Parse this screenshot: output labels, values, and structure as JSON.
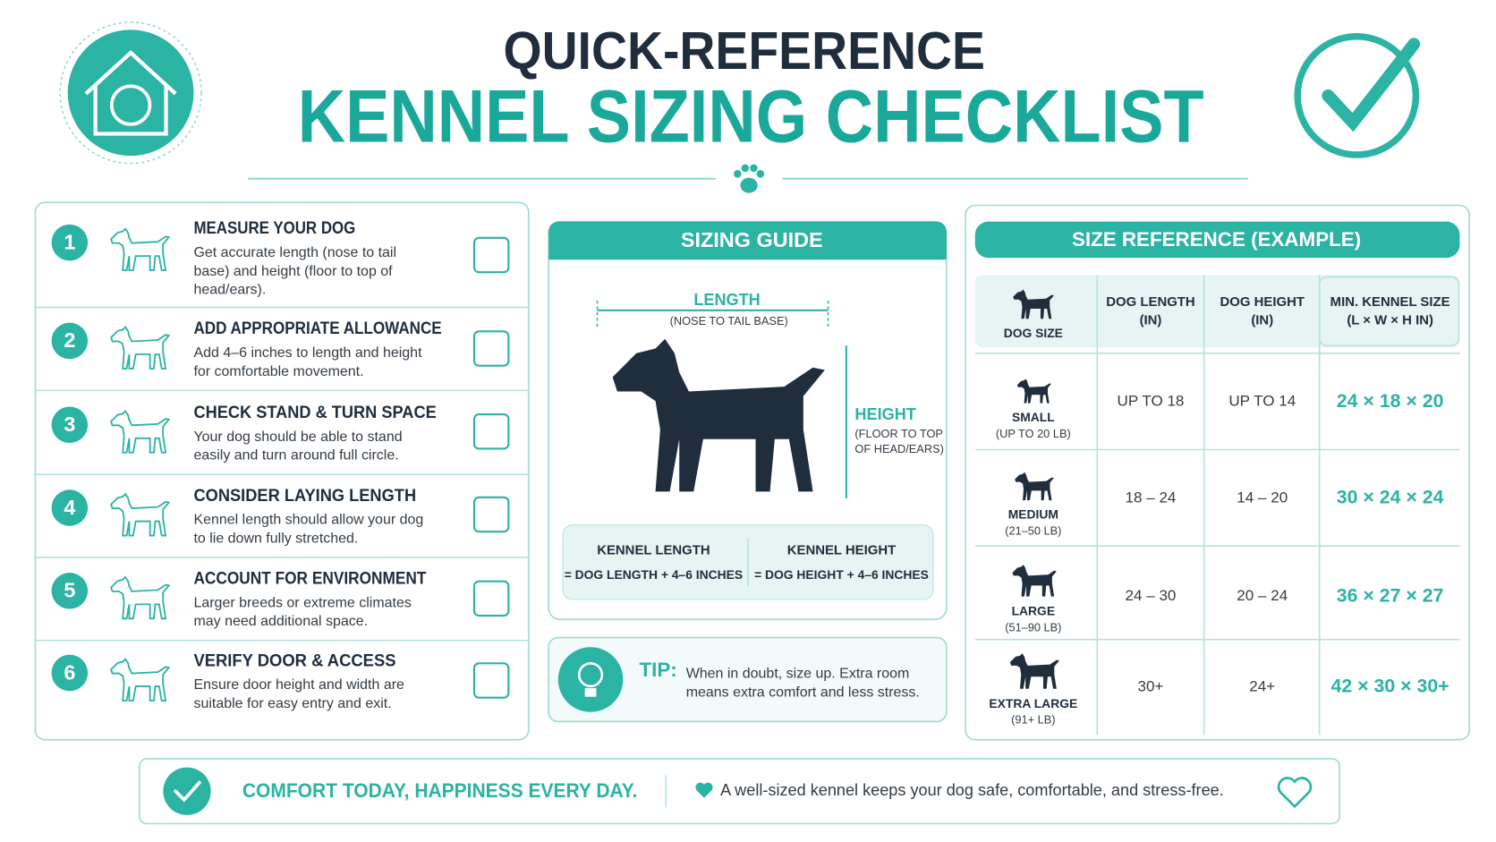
{
  "header": {
    "kicker": "QUICK-REFERENCE",
    "title": "KENNEL SIZING CHECKLIST"
  },
  "checklist": [
    {
      "number": "1",
      "title": "MEASURE YOUR DOG",
      "lines": [
        "Get accurate length (nose to tail",
        "base) and height (floor to top of",
        "head/ears)."
      ]
    },
    {
      "number": "2",
      "title": "ADD APPROPRIATE ALLOWANCE",
      "lines": [
        "Add 4–6 inches to length and height",
        "for comfortable movement."
      ]
    },
    {
      "number": "3",
      "title": "CHECK STAND & TURN SPACE",
      "lines": [
        "Your dog should be able to stand",
        "easily and turn around full circle."
      ]
    },
    {
      "number": "4",
      "title": "CONSIDER LAYING LENGTH",
      "lines": [
        "Kennel length should allow your dog",
        "to lie down fully stretched."
      ]
    },
    {
      "number": "5",
      "title": "ACCOUNT FOR ENVIRONMENT",
      "lines": [
        "Larger breeds or extreme climates",
        "may need additional space."
      ]
    },
    {
      "number": "6",
      "title": "VERIFY DOOR & ACCESS",
      "lines": [
        "Ensure door height and width are",
        "suitable for easy entry and exit."
      ]
    }
  ],
  "sizing_guide": {
    "title": "SIZING GUIDE",
    "length_label": "LENGTH",
    "length_note": "(NOSE TO TAIL BASE)",
    "height_label": "HEIGHT",
    "height_note": [
      "(FLOOR TO TOP",
      "OF HEAD/EARS)"
    ],
    "formulas": [
      {
        "label": "KENNEL LENGTH",
        "formula": "= DOG LENGTH + 4–6 INCHES"
      },
      {
        "label": "KENNEL HEIGHT",
        "formula": "= DOG HEIGHT + 4–6 INCHES"
      }
    ]
  },
  "tip": {
    "label": "TIP:",
    "lines": [
      "When in doubt, size up. Extra room",
      "means extra comfort and less stress."
    ]
  },
  "size_reference": {
    "title": "SIZE REFERENCE (EXAMPLE)",
    "headers": [
      [
        "DOG SIZE"
      ],
      [
        "DOG LENGTH",
        "(IN)"
      ],
      [
        "DOG HEIGHT",
        "(IN)"
      ],
      [
        "MIN. KENNEL SIZE",
        "(L × W × H IN)"
      ]
    ],
    "rows": [
      {
        "size": "SMALL",
        "weight": "(UP TO 20 LB)",
        "length": "UP TO 18",
        "height": "UP TO 14",
        "kennel": "24 × 18 × 20"
      },
      {
        "size": "MEDIUM",
        "weight": "(21–50 LB)",
        "length": "18 – 24",
        "height": "14 – 20",
        "kennel": "30 × 24 × 24"
      },
      {
        "size": "LARGE",
        "weight": "(51–90 LB)",
        "length": "24 – 30",
        "height": "20 – 24",
        "kennel": "36 × 27 × 27"
      },
      {
        "size": "EXTRA LARGE",
        "weight": "(91+ LB)",
        "length": "30+",
        "height": "24+",
        "kennel": "42 × 30 × 30+"
      }
    ]
  },
  "footer": {
    "slogan": "COMFORT TODAY, HAPPINESS EVERY DAY.",
    "message": "A well-sized kennel keeps your dog safe, comfortable, and stress-free."
  }
}
